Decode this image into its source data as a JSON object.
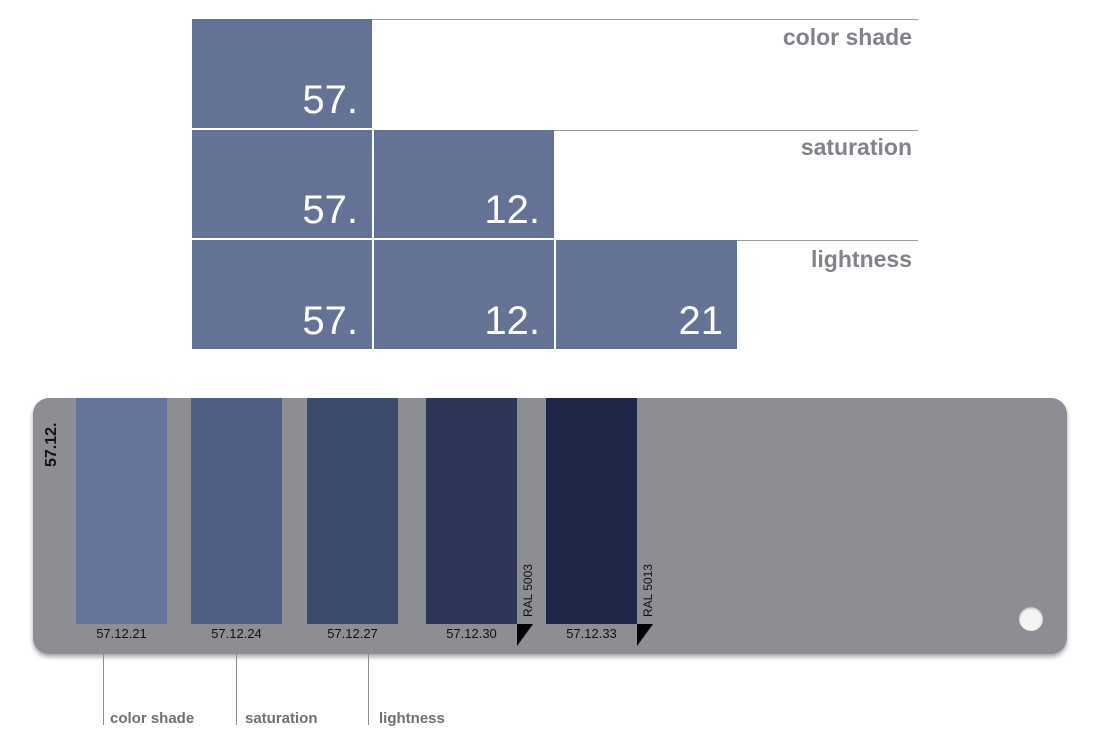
{
  "diagram": {
    "rows": [
      {
        "label": "color shade",
        "blocks": [
          "57."
        ]
      },
      {
        "label": "saturation",
        "blocks": [
          "57.",
          "12."
        ]
      },
      {
        "label": "lightness",
        "blocks": [
          "57.",
          "12.",
          "21"
        ]
      }
    ],
    "block_color": "#647395",
    "label_color": "#818389"
  },
  "fan_card": {
    "code": "57.12.",
    "card_color": "#8d8e93",
    "swatches": [
      {
        "code": "57.12.21",
        "color": "#66739a",
        "ral": ""
      },
      {
        "code": "57.12.24",
        "color": "#4f5f86",
        "ral": ""
      },
      {
        "code": "57.12.27",
        "color": "#3c4a6d",
        "ral": ""
      },
      {
        "code": "57.12.30",
        "color": "#2d3558",
        "ral": "RAL 5003"
      },
      {
        "code": "57.12.33",
        "color": "#1f2647",
        "ral": "RAL 5013"
      }
    ]
  },
  "legend": {
    "labels": [
      "color shade",
      "saturation",
      "lightness"
    ]
  }
}
